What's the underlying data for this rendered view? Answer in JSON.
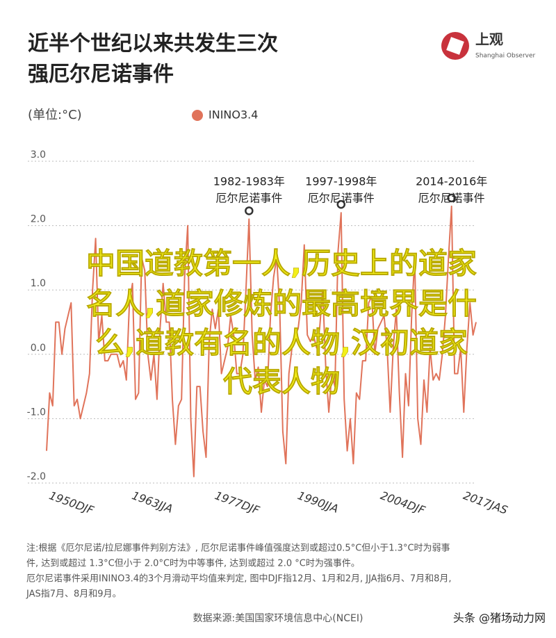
{
  "chart_data": {
    "type": "line",
    "title": [
      "近半个世纪以来共发生三次",
      "强厄尔尼诺事件"
    ],
    "unit_label": "(单位:°C)",
    "logo": {
      "name": "上观",
      "subtitle": "Shanghai Observer"
    },
    "series": [
      {
        "name": "ININO3.4",
        "color": "#e0735a",
        "values": [
          -1.5,
          -0.6,
          -0.8,
          0.5,
          0.5,
          0.0,
          0.4,
          0.6,
          0.8,
          -0.8,
          -0.7,
          -1.0,
          -0.8,
          -0.6,
          -0.3,
          1.0,
          1.8,
          0.2,
          0.6,
          -0.1,
          -0.1,
          0.0,
          0.0,
          0.0,
          -0.2,
          -0.1,
          -0.4,
          0.8,
          1.1,
          -0.7,
          -0.6,
          1.5,
          1.3,
          0.0,
          -0.4,
          0.0,
          -0.7,
          0.4,
          1.1,
          0.5,
          0.5,
          -0.7,
          -1.4,
          -0.8,
          -0.7,
          1.2,
          2.0,
          -1.0,
          -1.9,
          -0.5,
          -0.5,
          -1.2,
          -1.6,
          0.2,
          0.7,
          0.4,
          0.7,
          -0.3,
          -0.1,
          0.1,
          0.6,
          0.3,
          -0.3,
          -0.3,
          0.0,
          1.0,
          2.1,
          0.3,
          -0.4,
          -0.2,
          -0.9,
          -0.4,
          -0.5,
          0.6,
          1.2,
          1.5,
          0.7,
          -1.2,
          -1.7,
          -0.3,
          0.1,
          0.3,
          0.4,
          0.8,
          1.7,
          0.3,
          0.2,
          0.3,
          0.1,
          0.4,
          1.0,
          -0.2,
          -0.9,
          -0.3,
          -0.5,
          1.6,
          2.2,
          -0.7,
          -1.5,
          -1.0,
          -1.7,
          -0.6,
          -0.7,
          -0.1,
          -0.1,
          0.8,
          0.9,
          0.0,
          0.4,
          0.5,
          0.6,
          0.1,
          -0.9,
          0.1,
          0.7,
          -0.6,
          -1.6,
          -0.3,
          -0.8,
          0.6,
          1.5,
          -1.0,
          -1.4,
          -0.4,
          -0.9,
          0.1,
          -0.4,
          -0.3,
          -0.4,
          0.0,
          0.6,
          1.5,
          2.3,
          -0.3,
          -0.3,
          0.1,
          -0.9,
          0.1,
          0.8,
          0.3,
          0.5
        ]
      }
    ],
    "categories": [
      "1950DJF",
      null,
      null,
      null,
      null,
      null,
      null,
      null,
      null,
      null,
      null,
      null,
      null,
      null,
      null,
      null,
      null,
      null,
      null,
      null,
      null,
      null,
      null,
      null,
      null,
      null,
      null,
      "1963JJA",
      null,
      null,
      null,
      null,
      null,
      null,
      null,
      null,
      null,
      null,
      null,
      null,
      null,
      null,
      null,
      null,
      null,
      null,
      null,
      null,
      null,
      null,
      null,
      null,
      null,
      null,
      "1977DJF",
      null,
      null,
      null,
      null,
      null,
      null,
      null,
      null,
      null,
      null,
      null,
      null,
      null,
      null,
      null,
      null,
      null,
      null,
      null,
      null,
      null,
      null,
      null,
      null,
      null,
      null,
      "1990JJA",
      null,
      null,
      null,
      null,
      null,
      null,
      null,
      null,
      null,
      null,
      null,
      null,
      null,
      null,
      null,
      null,
      null,
      null,
      null,
      null,
      null,
      null,
      null,
      null,
      null,
      null,
      "2004DJF",
      null,
      null,
      null,
      null,
      null,
      null,
      null,
      null,
      null,
      null,
      null,
      null,
      null,
      null,
      null,
      null,
      null,
      null,
      null,
      null,
      null,
      null,
      null,
      null,
      null,
      null,
      "2017JAS",
      null,
      null,
      null,
      null,
      null
    ],
    "ylim": [
      -2,
      3
    ],
    "yticks": [
      {
        "value": -2,
        "label": "-2.0"
      },
      {
        "value": -1,
        "label": "-1.0"
      },
      {
        "value": 0,
        "label": "0.0"
      },
      {
        "value": 1,
        "label": "1.0"
      },
      {
        "value": 2,
        "label": "2.0"
      },
      {
        "value": 3,
        "label": "3.0"
      }
    ],
    "grid": true,
    "annotations": [
      [
        "1982-1983年",
        "厄尔尼诺事件"
      ],
      [
        "1997-1998年",
        "厄尔尼诺事件"
      ],
      [
        "2014-2016年",
        "厄尔尼诺事件"
      ]
    ],
    "notes": [
      "注:根据《厄尔尼诺/拉尼娜事件判别方法》, 厄尔尼诺事件峰值强度达到或超过0.5°C但小于1.3°C时为弱事",
      "件, 达到或超过 1.3°C但小于 2.0°C时为中等事件, 达到或超过 2.0 °C时为强事件。",
      "厄尔尼诺事件采用ININO3.4的3个月滑动平均值来判定, 图中DJF指12月、1月和2月, JJA指6月、7月和8月,",
      "JAS指7月、8月和9月。"
    ],
    "source": "数据来源:美国国家环境信息中心(NCEI)",
    "watermark": "头条 @猪场动力网",
    "overlay": [
      "中国道教第一人,历史上的道家",
      "名人,道家修炼的最高境界是什",
      "么,道教有名的人物,汉初道家",
      "代表人物"
    ]
  }
}
